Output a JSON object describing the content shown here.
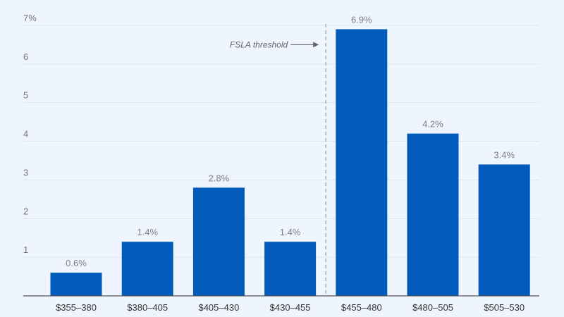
{
  "chart_data": {
    "type": "bar",
    "categories": [
      "$355–380",
      "$380–405",
      "$405–430",
      "$430–455",
      "$455–480",
      "$480–505",
      "$505–530"
    ],
    "values": [
      0.6,
      1.4,
      2.8,
      1.4,
      6.9,
      4.2,
      3.4
    ],
    "data_labels": [
      "0.6%",
      "1.4%",
      "2.8%",
      "1.4%",
      "6.9%",
      "4.2%",
      "3.4%"
    ],
    "yticks": [
      1,
      2,
      3,
      4,
      5,
      6,
      7
    ],
    "ytick_labels": [
      "1",
      "2",
      "3",
      "4",
      "5",
      "6",
      "7%"
    ],
    "ylim": [
      0,
      7
    ],
    "grid": true,
    "annotation": {
      "text": "FSLA threshold",
      "between": [
        "$430–455",
        "$455–480"
      ]
    },
    "colors": {
      "bar": "#005bbb",
      "grid": "#dde5ef",
      "axis": "#555555",
      "threshold": "#aab4c0"
    }
  }
}
